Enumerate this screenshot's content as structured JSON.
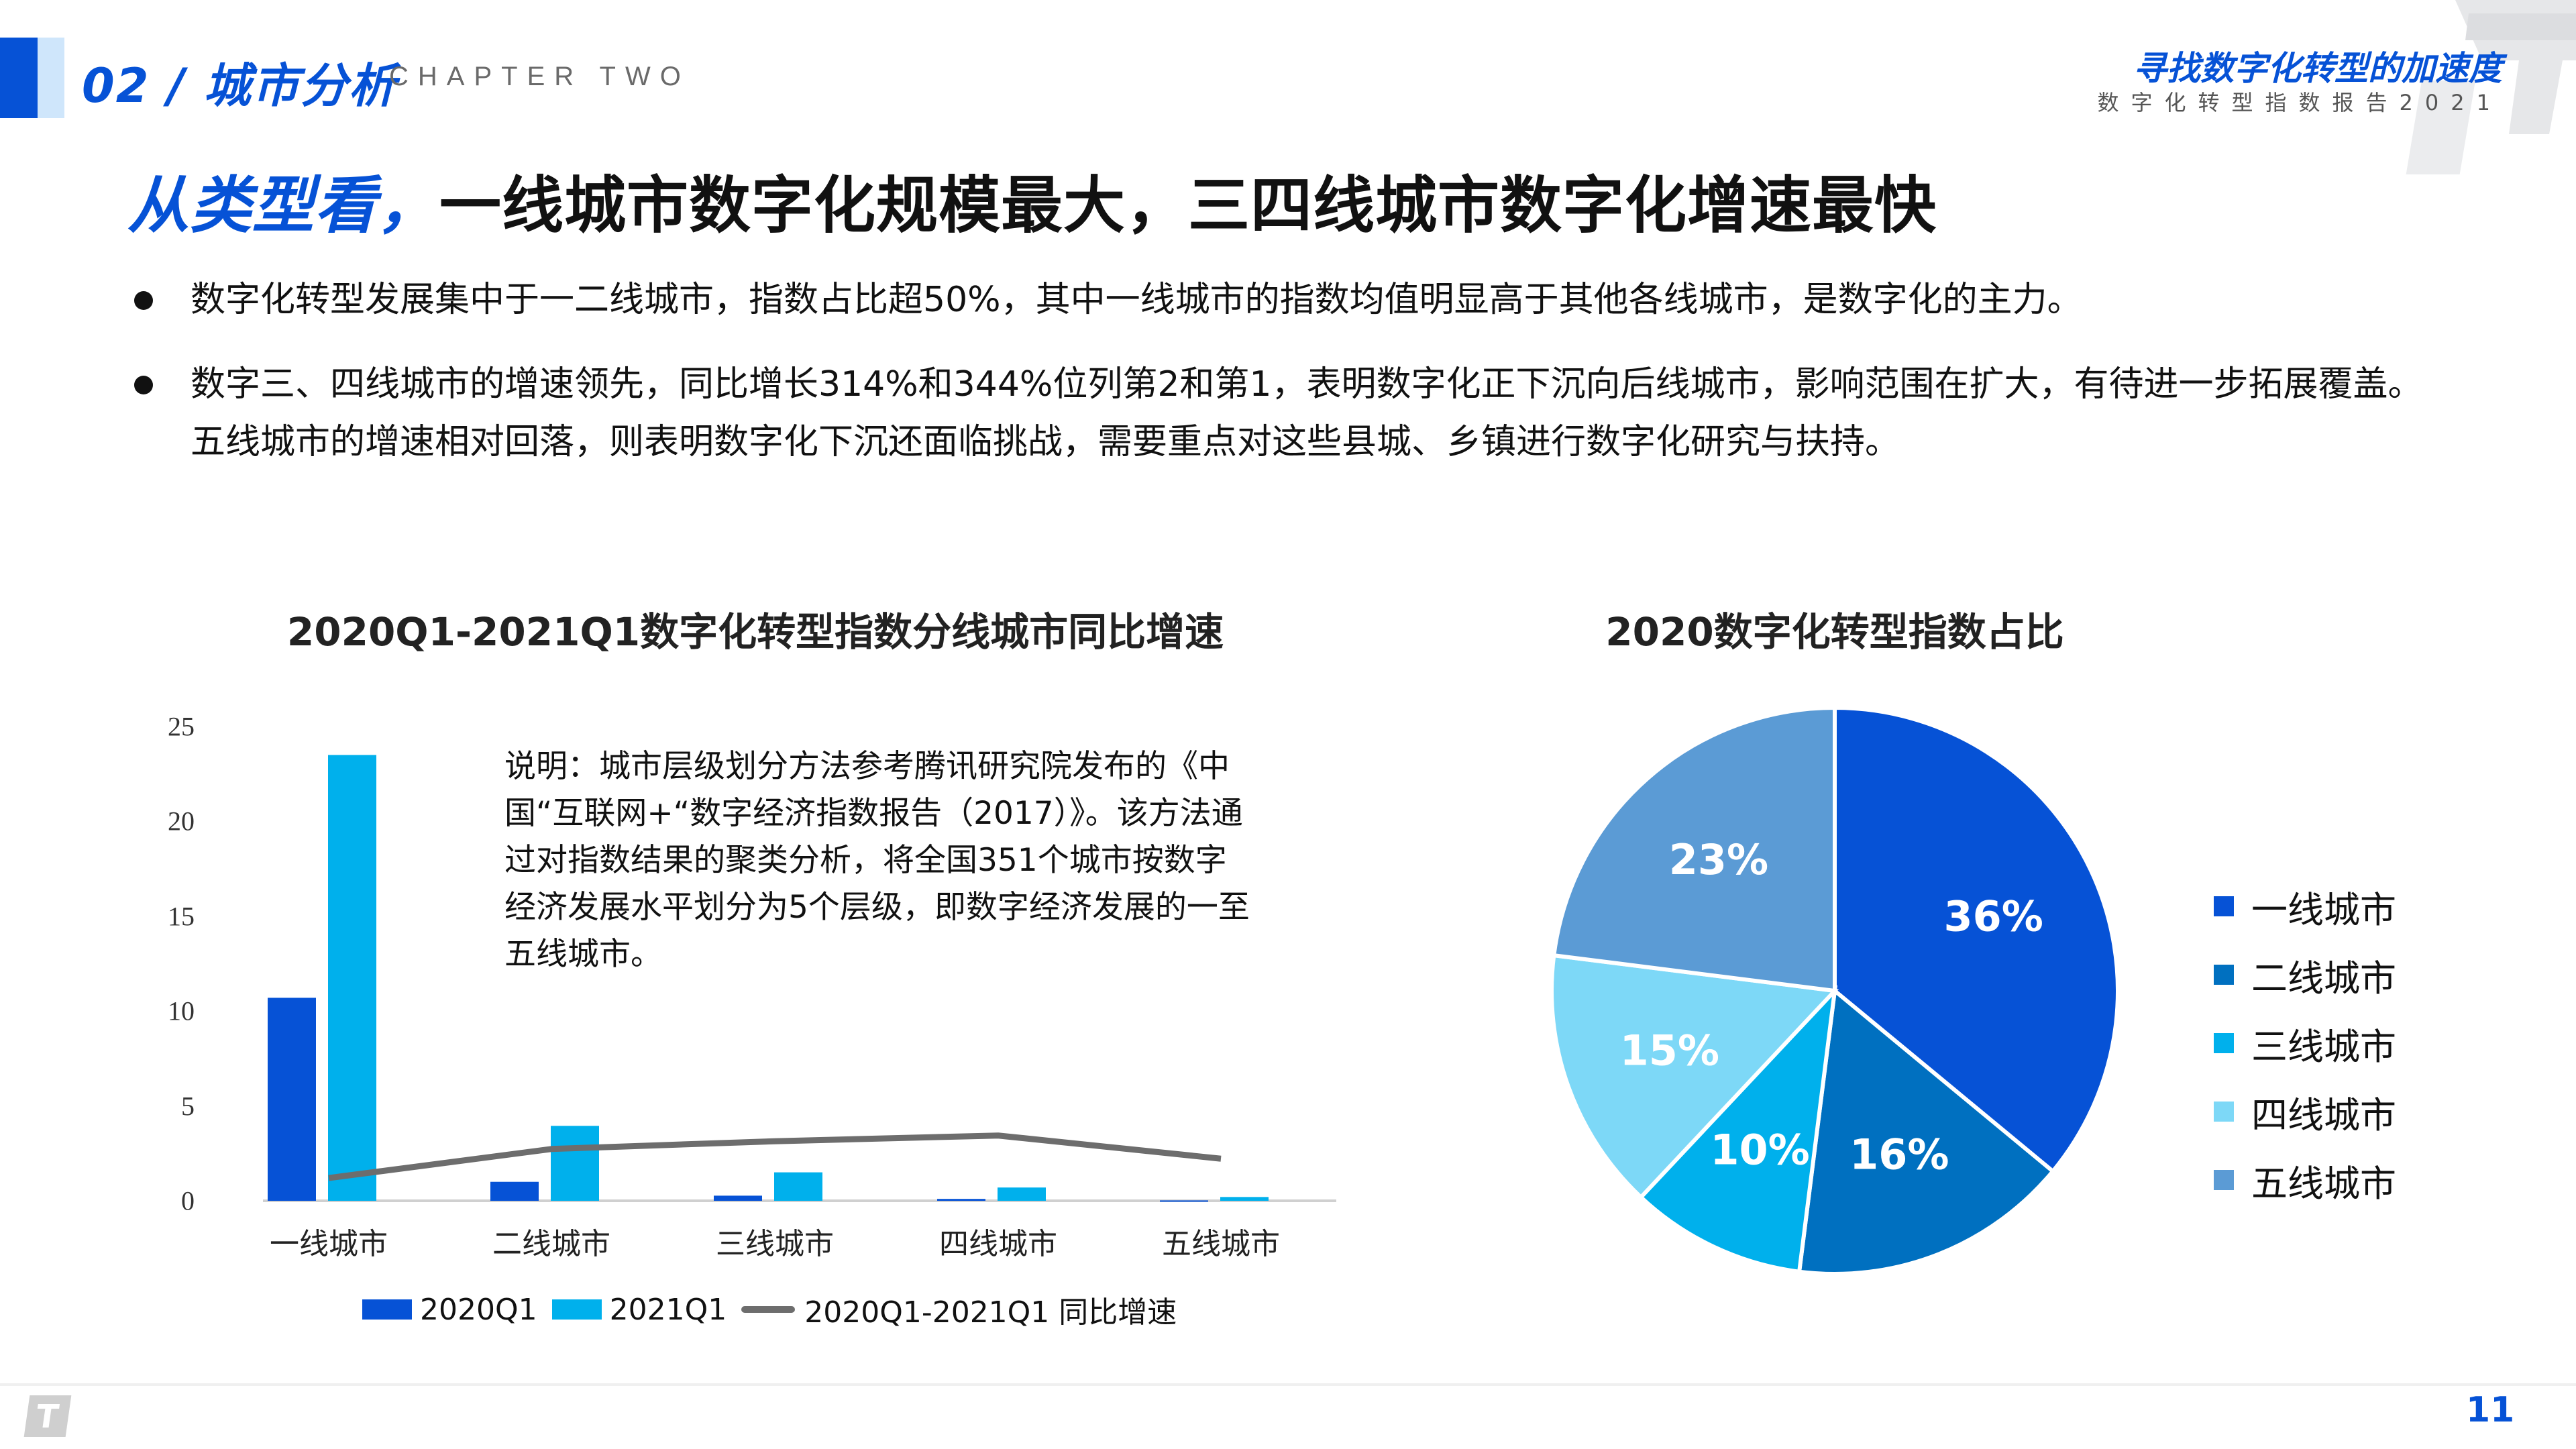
{
  "header": {
    "section_number_title": "02 / 城市分析",
    "chapter_label": "CHAPTER TWO",
    "brand_title": "寻找数字化转型的加速度",
    "brand_subtitle": "数字化转型指数报告2021"
  },
  "headline": {
    "lead": "从类型看，",
    "rest": "一线城市数字化规模最大，三四线城市数字化增速最快"
  },
  "bullets": [
    "数字化转型发展集中于一二线城市，指数占比超50%，其中一线城市的指数均值明显高于其他各线城市，是数字化的主力。",
    "数字三、四线城市的增速领先，同比增长314%和344%位列第2和第1，表明数字化正下沉向后线城市，影响范围在扩大，有待进一步拓展覆盖。五线城市的增速相对回落，则表明数字化下沉还面临挑战，需要重点对这些县城、乡镇进行数字化研究与扶持。"
  ],
  "bar_chart": {
    "title": "2020Q1-2021Q1数字化转型指数分线城市同比增速",
    "note": "说明：城市层级划分方法参考腾讯研究院发布的《中国“互联网+“数字经济指数报告（2017）》。该方法通过对指数结果的聚类分析，将全国351个城市按数字经济发展水平划分为5个层级，即数字经济发展的一至五线城市。",
    "yticks": [
      "25",
      "20",
      "15",
      "10",
      "5",
      "0"
    ],
    "legend": [
      "2020Q1",
      "2021Q1",
      "2020Q1-2021Q1 同比增速"
    ]
  },
  "pie_chart": {
    "title": "2020数字化转型指数占比",
    "legend": [
      "一线城市",
      "二线城市",
      "三线城市",
      "四线城市",
      "五线城市"
    ],
    "labels": [
      "36%",
      "16%",
      "10%",
      "15%",
      "23%"
    ]
  },
  "footer": {
    "page_number": "11"
  },
  "colors": {
    "brand_blue": "#0652d6",
    "series_2020q1": "#0652d6",
    "series_2021q1": "#00b0ec",
    "growth_line": "#6d6d6d",
    "pie": [
      "#0652d6",
      "#0070c0",
      "#00b0ec",
      "#7dd8f7",
      "#5b9bd5"
    ]
  },
  "chart_data": [
    {
      "type": "bar",
      "title": "2020Q1-2021Q1数字化转型指数分线城市同比增速",
      "categories": [
        "一线城市",
        "二线城市",
        "三线城市",
        "四线城市",
        "五线城市"
      ],
      "series": [
        {
          "name": "2020Q1",
          "type": "bar",
          "values": [
            10.7,
            1.0,
            0.27,
            0.1,
            0.02
          ]
        },
        {
          "name": "2021Q1",
          "type": "bar",
          "values": [
            23.5,
            3.95,
            1.5,
            0.7,
            0.2
          ]
        },
        {
          "name": "2020Q1-2021Q1 同比增速",
          "type": "line",
          "values": [
            1.2,
            2.73,
            3.14,
            3.44,
            2.22
          ]
        }
      ],
      "xlabel": "",
      "ylabel": "",
      "ylim": [
        0,
        25
      ],
      "yticks": [
        0,
        5,
        10,
        15,
        20,
        25
      ],
      "grid": false,
      "legend_position": "bottom"
    },
    {
      "type": "pie",
      "title": "2020数字化转型指数占比",
      "categories": [
        "一线城市",
        "二线城市",
        "三线城市",
        "四线城市",
        "五线城市"
      ],
      "values": [
        36,
        16,
        10,
        15,
        23
      ],
      "unit": "%",
      "legend_position": "right"
    }
  ]
}
